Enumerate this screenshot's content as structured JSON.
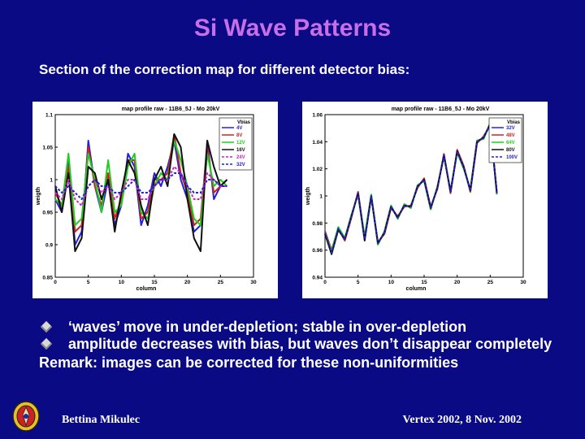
{
  "slide": {
    "title": "Si Wave Patterns",
    "subtitle": "Section of the correction map for different detector bias:",
    "bullets": [
      "‘waves’ move in under-depletion; stable in over-depletion",
      "amplitude decreases with bias, but waves don’t disappear completely"
    ],
    "remark": "Remark: images can be corrected for these non-uniformities",
    "footer_left": "Bettina Mikulec",
    "footer_right": "Vertex 2002, 8 Nov. 2002"
  },
  "colors": {
    "background": "#0a0a84",
    "title": "#c86ee6",
    "text": "#ffffff"
  },
  "chart_data": [
    {
      "type": "line",
      "title": "map profile raw  -  11B6_5J  -  Mo 20kV",
      "xlabel": "column",
      "ylabel": "weigth",
      "xlim": [
        0,
        30
      ],
      "ylim": [
        0.85,
        1.1
      ],
      "xticks": [
        0,
        5,
        10,
        15,
        20,
        25,
        30
      ],
      "yticks": [
        0.85,
        0.9,
        0.95,
        1,
        1.05,
        1.1
      ],
      "ytick_labels": [
        "0.85",
        "0.9",
        "0.95",
        "1",
        "1.05",
        "1.1"
      ],
      "legend_title": "Vbias",
      "legend_position": "top-right",
      "grid": false,
      "x": [
        0,
        1,
        2,
        3,
        4,
        5,
        6,
        7,
        8,
        9,
        10,
        11,
        12,
        13,
        14,
        15,
        16,
        17,
        18,
        19,
        20,
        21,
        22,
        23,
        24,
        25,
        26
      ],
      "series": [
        {
          "name": "4V",
          "color": "#2222dd",
          "dash": "solid",
          "values": [
            0.97,
            0.95,
            1.03,
            0.9,
            0.92,
            1.06,
            0.99,
            0.95,
            1.0,
            0.93,
            0.96,
            1.04,
            1.02,
            0.93,
            0.96,
            1.01,
            0.99,
            1.02,
            1.06,
            1.0,
            0.97,
            0.92,
            0.93,
            1.06,
            0.97,
            0.99,
            0.99
          ]
        },
        {
          "name": "8V",
          "color": "#cc2222",
          "dash": "solid",
          "values": [
            0.98,
            0.96,
            1.02,
            0.92,
            0.93,
            1.05,
            0.99,
            0.96,
            1.01,
            0.94,
            0.97,
            1.03,
            1.03,
            0.94,
            0.95,
            1.0,
            1.0,
            1.01,
            1.07,
            1.01,
            0.98,
            0.93,
            0.94,
            1.05,
            0.98,
            0.99,
            1.0
          ]
        },
        {
          "name": "12V",
          "color": "#22cc22",
          "dash": "solid",
          "values": [
            0.97,
            0.96,
            1.04,
            0.93,
            0.94,
            1.04,
            1.0,
            0.95,
            1.03,
            0.95,
            0.96,
            1.02,
            1.04,
            0.95,
            0.94,
            0.99,
            1.01,
            1.0,
            1.06,
            1.03,
            0.99,
            0.94,
            0.93,
            1.04,
            0.99,
            1.0,
            0.99
          ]
        },
        {
          "name": "16V",
          "color": "#111111",
          "dash": "solid",
          "values": [
            0.99,
            0.95,
            1.01,
            0.89,
            0.91,
            1.02,
            1.01,
            0.97,
            1.0,
            0.92,
            0.98,
            1.03,
            1.01,
            0.96,
            0.93,
            1.0,
            1.02,
            0.99,
            1.07,
            1.05,
            0.97,
            0.91,
            0.89,
            1.06,
            1.02,
            0.99,
            1.0
          ]
        },
        {
          "name": "24V",
          "color": "#cc22cc",
          "dash": "dashed",
          "values": [
            0.98,
            0.97,
            1.0,
            0.97,
            0.96,
            0.99,
            1.0,
            0.98,
            0.99,
            0.97,
            0.98,
            1.0,
            1.0,
            0.97,
            0.97,
            0.99,
            1.0,
            1.0,
            1.02,
            1.01,
            0.99,
            0.97,
            0.97,
            1.01,
            1.0,
            0.99,
            0.99
          ]
        },
        {
          "name": "32V",
          "color": "#2222cc",
          "dash": "dashed",
          "values": [
            0.99,
            0.98,
            0.99,
            0.98,
            0.97,
            0.99,
            1.0,
            0.99,
            0.99,
            0.98,
            0.98,
            0.99,
            1.0,
            0.98,
            0.98,
            0.99,
            1.0,
            1.0,
            1.01,
            1.01,
            0.99,
            0.98,
            0.98,
            1.0,
            1.0,
            0.99,
            0.99
          ]
        }
      ]
    },
    {
      "type": "line",
      "title": "map profile raw  -  11B6_5J  -  Mo 20kV",
      "xlabel": "column",
      "ylabel": "weigth",
      "xlim": [
        0,
        30
      ],
      "ylim": [
        0.94,
        1.06
      ],
      "xticks": [
        0,
        5,
        10,
        15,
        20,
        25,
        30
      ],
      "yticks": [
        0.94,
        0.96,
        0.98,
        1,
        1.02,
        1.04,
        1.06
      ],
      "ytick_labels": [
        "0.94",
        "0.96",
        "0.98",
        "1",
        "1.02",
        "1.04",
        "1.06"
      ],
      "legend_title": "Vbias",
      "legend_position": "top-right",
      "grid": false,
      "x": [
        0,
        1,
        2,
        3,
        4,
        5,
        6,
        7,
        8,
        9,
        10,
        11,
        12,
        13,
        14,
        15,
        16,
        17,
        18,
        19,
        20,
        21,
        22,
        23,
        24,
        25,
        26
      ],
      "series": [
        {
          "name": "32V",
          "color": "#2222dd",
          "dash": "solid",
          "values": [
            0.972,
            0.958,
            0.975,
            0.968,
            0.985,
            1.002,
            0.968,
            1.0,
            0.965,
            0.973,
            0.992,
            0.984,
            0.993,
            0.992,
            1.007,
            1.012,
            0.991,
            1.006,
            1.03,
            1.003,
            1.033,
            1.021,
            1.004,
            1.04,
            1.043,
            1.053,
            1.002
          ]
        },
        {
          "name": "48V",
          "color": "#cc2222",
          "dash": "solid",
          "values": [
            0.974,
            0.96,
            0.976,
            0.967,
            0.984,
            1.003,
            0.969,
            0.999,
            0.966,
            0.972,
            0.991,
            0.985,
            0.992,
            0.993,
            1.006,
            1.013,
            0.992,
            1.005,
            1.031,
            1.002,
            1.034,
            1.022,
            1.003,
            1.039,
            1.044,
            1.052,
            1.003
          ]
        },
        {
          "name": "64V",
          "color": "#22cc22",
          "dash": "solid",
          "values": [
            0.973,
            0.959,
            0.977,
            0.969,
            0.986,
            1.001,
            0.97,
            1.001,
            0.964,
            0.974,
            0.993,
            0.983,
            0.994,
            0.991,
            1.008,
            1.011,
            0.99,
            1.007,
            1.029,
            1.004,
            1.032,
            1.02,
            1.005,
            1.041,
            1.042,
            1.054,
            1.001
          ]
        },
        {
          "name": "80V",
          "color": "#111111",
          "dash": "solid",
          "values": [
            0.972,
            0.957,
            0.975,
            0.968,
            0.985,
            1.002,
            0.967,
            1.0,
            0.965,
            0.973,
            0.992,
            0.984,
            0.993,
            0.992,
            1.007,
            1.012,
            0.991,
            1.006,
            1.03,
            1.003,
            1.033,
            1.021,
            1.004,
            1.04,
            1.043,
            1.053,
            1.002
          ]
        },
        {
          "name": "100V",
          "color": "#2222cc",
          "dash": "dashed",
          "values": [
            0.973,
            0.958,
            0.976,
            0.968,
            0.985,
            1.002,
            0.968,
            1.0,
            0.965,
            0.973,
            0.992,
            0.984,
            0.993,
            0.992,
            1.007,
            1.012,
            0.991,
            1.006,
            1.03,
            1.003,
            1.033,
            1.021,
            1.004,
            1.04,
            1.043,
            1.053,
            1.002
          ]
        }
      ]
    }
  ]
}
